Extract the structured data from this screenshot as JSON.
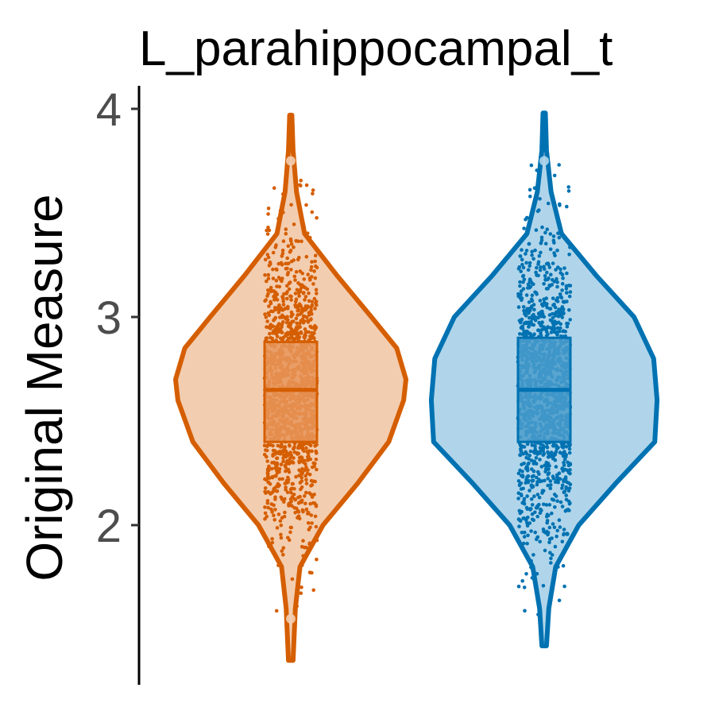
{
  "chart_data": {
    "type": "violin",
    "title": "L_parahippocampal_t",
    "xlabel": "",
    "ylabel": "Original Measure",
    "ylim": [
      1.33,
      4.05
    ],
    "yticks": [
      2,
      3,
      4
    ],
    "ytick_labels": [
      "2",
      "3",
      "4"
    ],
    "grid": false,
    "legend": "none",
    "groups": [
      {
        "color": "#D55E00",
        "fill": "#F3CDB0",
        "box_fill": "#E8955A",
        "min": 1.35,
        "max": 3.97,
        "q1": 2.4,
        "median": 2.65,
        "q3": 2.88,
        "outliers": [
          3.75,
          1.55
        ],
        "density": [
          [
            1.35,
            0.02
          ],
          [
            1.6,
            0.04
          ],
          [
            1.8,
            0.08
          ],
          [
            2.0,
            0.28
          ],
          [
            2.2,
            0.58
          ],
          [
            2.4,
            0.85
          ],
          [
            2.6,
            0.98
          ],
          [
            2.7,
            1.0
          ],
          [
            2.85,
            0.92
          ],
          [
            3.0,
            0.7
          ],
          [
            3.2,
            0.4
          ],
          [
            3.4,
            0.12
          ],
          [
            3.6,
            0.05
          ],
          [
            3.8,
            0.02
          ],
          [
            3.97,
            0.01
          ]
        ]
      },
      {
        "color": "#0072B2",
        "fill": "#B0D5EA",
        "box_fill": "#4A9CCB",
        "min": 1.42,
        "max": 3.98,
        "q1": 2.4,
        "median": 2.65,
        "q3": 2.9,
        "outliers": [
          3.75
        ],
        "density": [
          [
            1.42,
            0.02
          ],
          [
            1.6,
            0.04
          ],
          [
            1.8,
            0.1
          ],
          [
            2.0,
            0.3
          ],
          [
            2.2,
            0.62
          ],
          [
            2.4,
            0.96
          ],
          [
            2.6,
            0.98
          ],
          [
            2.8,
            0.95
          ],
          [
            3.0,
            0.78
          ],
          [
            3.2,
            0.45
          ],
          [
            3.4,
            0.15
          ],
          [
            3.6,
            0.06
          ],
          [
            3.8,
            0.02
          ],
          [
            3.98,
            0.01
          ]
        ]
      }
    ]
  }
}
